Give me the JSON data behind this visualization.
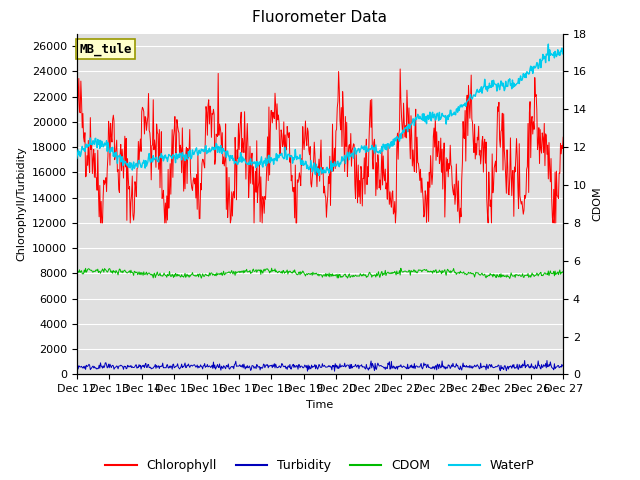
{
  "title": "Fluorometer Data",
  "xlabel": "Time",
  "ylabel_left": "Chlorophyll/Turbidity",
  "ylabel_right": "CDOM",
  "annotation_text": "MB_tule",
  "annotation_bbox_facecolor": "#ffffcc",
  "annotation_bbox_edgecolor": "#999900",
  "x_tick_labels": [
    "Dec 12",
    "Dec 13",
    "Dec 14",
    "Dec 15",
    "Dec 16",
    "Dec 17",
    "Dec 18",
    "Dec 19",
    "Dec 20",
    "Dec 21",
    "Dec 22",
    "Dec 23",
    "Dec 24",
    "Dec 25",
    "Dec 26",
    "Dec 27"
  ],
  "ylim_left": [
    0,
    27000
  ],
  "ylim_right": [
    0,
    18
  ],
  "yticks_left": [
    0,
    2000,
    4000,
    6000,
    8000,
    10000,
    12000,
    14000,
    16000,
    18000,
    20000,
    22000,
    24000,
    26000
  ],
  "yticks_right": [
    0,
    2,
    4,
    6,
    8,
    10,
    12,
    14,
    16,
    18
  ],
  "colors": {
    "chlorophyll": "#ff0000",
    "turbidity": "#0000bb",
    "cdom": "#00bb00",
    "waterp": "#00ccee",
    "background": "#e0e0e0",
    "grid": "#ffffff"
  },
  "legend_labels": [
    "Chlorophyll",
    "Turbidity",
    "CDOM",
    "WaterP"
  ],
  "seed": 42
}
